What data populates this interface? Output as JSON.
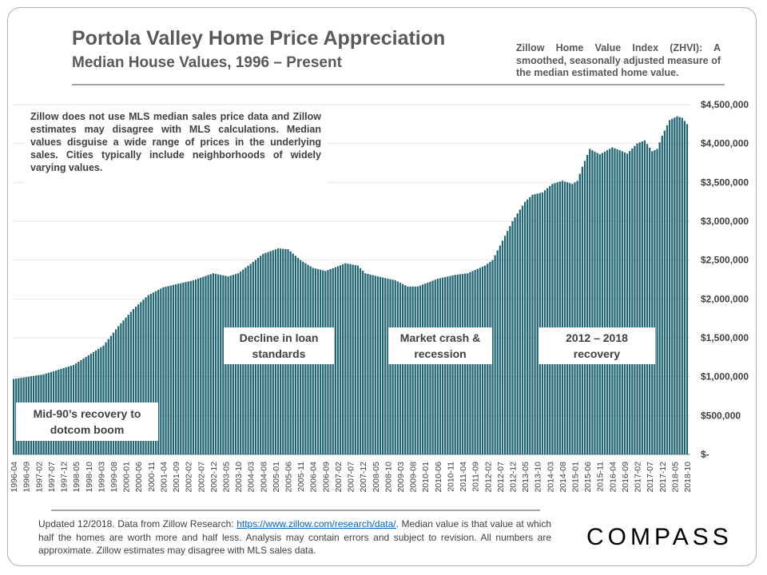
{
  "header": {
    "title": "Portola Valley Home Price Appreciation",
    "subtitle": "Median House Values, 1996 – Present",
    "zhvi_note": "Zillow Home Value Index (ZHVI): A smoothed, seasonally adjusted measure of the median estimated home value."
  },
  "chart_note": "Zillow does not use MLS median sales price data and Zillow estimates may disagree with MLS calculations. Median values disguise a wide range of prices in the underlying sales. Cities typically include neighborhoods of widely varying values.",
  "annotations": {
    "mid90s": "Mid-90’s recovery to dotcom boom",
    "decline": "Decline in loan standards",
    "crash": "Market crash & recession",
    "recovery": "2012 – 2018 recovery"
  },
  "footer": {
    "text_before": "Updated 12/2018. Data from Zillow Research: ",
    "link": "https://www.zillow.com/research/data/",
    "text_after": ". Median value is that value at which half the homes are worth more and half less. Analysis may contain errors and subject to revision. All numbers are approximate. Zillow estimates may disagree with MLS sales data."
  },
  "brand": "COMPASS",
  "colors": {
    "bar": "#1f6470",
    "text": "#404040",
    "title": "#595959",
    "link": "#0563c1"
  },
  "chart_data": {
    "type": "bar",
    "title": "Portola Valley Home Price Appreciation",
    "subtitle": "Median House Values, 1996 – Present",
    "xlabel": "",
    "ylabel": "",
    "ylim": [
      0,
      4500000
    ],
    "y_ticks": [
      0,
      500000,
      1000000,
      1500000,
      2000000,
      2500000,
      3000000,
      3500000,
      4000000,
      4500000
    ],
    "y_tick_labels": [
      "$-",
      "$500,000",
      "$1,000,000",
      "$1,500,000",
      "$2,000,000",
      "$2,500,000",
      "$3,000,000",
      "$3,500,000",
      "$4,000,000",
      "$4,500,000"
    ],
    "y_axis_position": "right",
    "grid": true,
    "legend": "none",
    "first_month": "1996-04",
    "last_month": "2018-10",
    "x_tick_labels": [
      "1996-04",
      "1996-09",
      "1997-02",
      "1997-07",
      "1997-12",
      "1998-05",
      "1998-10",
      "1999-03",
      "1999-08",
      "2000-01",
      "2000-06",
      "2000-11",
      "2001-04",
      "2001-09",
      "2002-02",
      "2002-07",
      "2002-12",
      "2003-05",
      "2003-10",
      "2004-03",
      "2004-08",
      "2005-01",
      "2005-06",
      "2005-11",
      "2006-04",
      "2006-09",
      "2007-02",
      "2007-07",
      "2007-12",
      "2008-05",
      "2008-10",
      "2009-03",
      "2009-08",
      "2010-01",
      "2010-06",
      "2010-11",
      "2011-04",
      "2011-09",
      "2012-02",
      "2012-07",
      "2012-12",
      "2013-05",
      "2013-10",
      "2014-03",
      "2014-08",
      "2015-01",
      "2015-06",
      "2015-11",
      "2016-04",
      "2016-09",
      "2017-02",
      "2017-07",
      "2017-12",
      "2018-05",
      "2018-10"
    ],
    "anchor_values": [
      {
        "month": "1996-04",
        "value": 970000
      },
      {
        "month": "1997-04",
        "value": 1030000
      },
      {
        "month": "1998-04",
        "value": 1150000
      },
      {
        "month": "1999-04",
        "value": 1400000
      },
      {
        "month": "1999-10",
        "value": 1650000
      },
      {
        "month": "2000-04",
        "value": 1870000
      },
      {
        "month": "2000-10",
        "value": 2050000
      },
      {
        "month": "2001-04",
        "value": 2150000
      },
      {
        "month": "2002-04",
        "value": 2240000
      },
      {
        "month": "2002-12",
        "value": 2330000
      },
      {
        "month": "2003-06",
        "value": 2290000
      },
      {
        "month": "2003-10",
        "value": 2330000
      },
      {
        "month": "2004-03",
        "value": 2450000
      },
      {
        "month": "2004-08",
        "value": 2580000
      },
      {
        "month": "2005-02",
        "value": 2650000
      },
      {
        "month": "2005-06",
        "value": 2640000
      },
      {
        "month": "2005-11",
        "value": 2500000
      },
      {
        "month": "2006-04",
        "value": 2400000
      },
      {
        "month": "2006-09",
        "value": 2360000
      },
      {
        "month": "2007-02",
        "value": 2420000
      },
      {
        "month": "2007-05",
        "value": 2460000
      },
      {
        "month": "2007-10",
        "value": 2430000
      },
      {
        "month": "2008-01",
        "value": 2330000
      },
      {
        "month": "2008-06",
        "value": 2290000
      },
      {
        "month": "2009-01",
        "value": 2240000
      },
      {
        "month": "2009-06",
        "value": 2160000
      },
      {
        "month": "2009-10",
        "value": 2160000
      },
      {
        "month": "2010-06",
        "value": 2260000
      },
      {
        "month": "2011-01",
        "value": 2310000
      },
      {
        "month": "2011-06",
        "value": 2330000
      },
      {
        "month": "2012-01",
        "value": 2430000
      },
      {
        "month": "2012-04",
        "value": 2500000
      },
      {
        "month": "2012-08",
        "value": 2750000
      },
      {
        "month": "2012-12",
        "value": 3000000
      },
      {
        "month": "2013-05",
        "value": 3250000
      },
      {
        "month": "2013-08",
        "value": 3340000
      },
      {
        "month": "2013-12",
        "value": 3370000
      },
      {
        "month": "2014-04",
        "value": 3480000
      },
      {
        "month": "2014-08",
        "value": 3520000
      },
      {
        "month": "2014-12",
        "value": 3480000
      },
      {
        "month": "2015-02",
        "value": 3520000
      },
      {
        "month": "2015-04",
        "value": 3700000
      },
      {
        "month": "2015-07",
        "value": 3930000
      },
      {
        "month": "2015-11",
        "value": 3860000
      },
      {
        "month": "2016-04",
        "value": 3950000
      },
      {
        "month": "2016-08",
        "value": 3900000
      },
      {
        "month": "2016-10",
        "value": 3870000
      },
      {
        "month": "2017-02",
        "value": 4000000
      },
      {
        "month": "2017-05",
        "value": 4040000
      },
      {
        "month": "2017-08",
        "value": 3900000
      },
      {
        "month": "2017-10",
        "value": 3930000
      },
      {
        "month": "2017-12",
        "value": 4100000
      },
      {
        "month": "2018-03",
        "value": 4300000
      },
      {
        "month": "2018-06",
        "value": 4350000
      },
      {
        "month": "2018-08",
        "value": 4330000
      },
      {
        "month": "2018-10",
        "value": 4250000
      }
    ]
  }
}
